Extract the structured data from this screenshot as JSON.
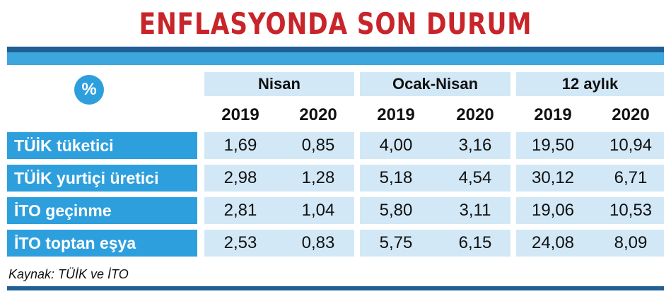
{
  "title": "ENFLASYONDA SON DURUM",
  "unit_badge": "%",
  "groups": [
    "Nisan",
    "Ocak-Nisan",
    "12 aylık"
  ],
  "years": [
    "2019",
    "2020",
    "2019",
    "2020",
    "2019",
    "2020"
  ],
  "rows": [
    {
      "label": "TÜİK tüketici",
      "values": [
        "1,69",
        "0,85",
        "4,00",
        "3,16",
        "19,50",
        "10,94"
      ]
    },
    {
      "label": "TÜİK yurtiçi üretici",
      "values": [
        "2,98",
        "1,28",
        "5,18",
        "4,54",
        "30,12",
        "6,71"
      ]
    },
    {
      "label": "İTO geçinme",
      "values": [
        "2,81",
        "1,04",
        "5,80",
        "3,11",
        "19,06",
        "10,53"
      ]
    },
    {
      "label": "İTO toptan eşya",
      "values": [
        "2,53",
        "0,83",
        "5,75",
        "6,15",
        "24,08",
        "8,09"
      ]
    }
  ],
  "source": "Kaynak: TÜİK ve İTO",
  "colors": {
    "title": "#c8252b",
    "accent": "#2e9fdd",
    "dark_rule": "#1f5f96",
    "cell_bg": "#d2e8f6"
  }
}
